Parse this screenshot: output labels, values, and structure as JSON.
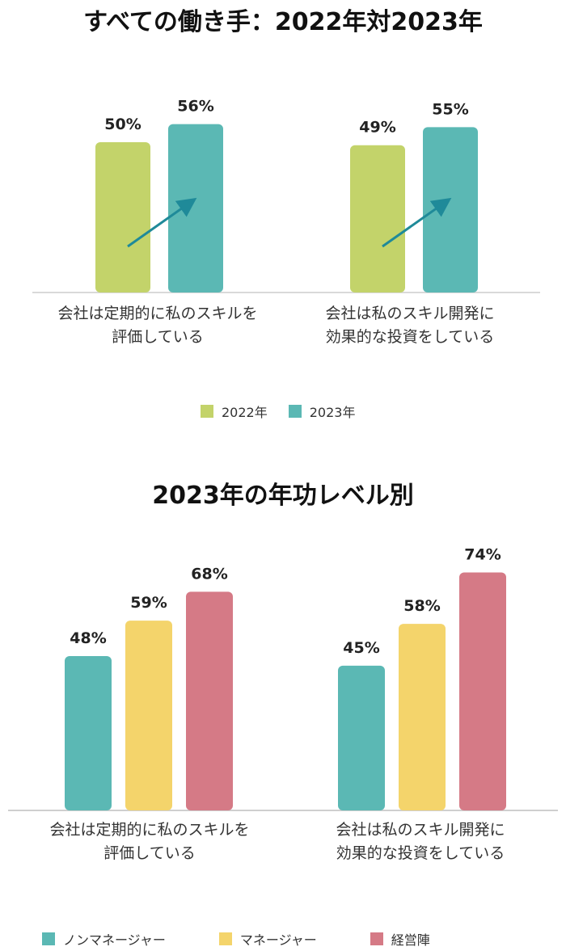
{
  "chart_data": [
    {
      "type": "bar",
      "title": "すべての働き手：2022年対2023年",
      "categories": [
        "会社は定期的に私のスキルを\n評価している",
        "会社は私のスキル開発に\n効果的な投資をしている"
      ],
      "series": [
        {
          "name": "2022年",
          "values": [
            50,
            49
          ],
          "labels": [
            "50%",
            "49%"
          ]
        },
        {
          "name": "2023年",
          "values": [
            56,
            55
          ],
          "labels": [
            "56%",
            "55%"
          ]
        }
      ],
      "colors": [
        "#c3d36a",
        "#5bb8b4"
      ],
      "arrow_color": "#1f8a99",
      "ylim": [
        0,
        80
      ],
      "legend": "bottom-center"
    },
    {
      "type": "bar",
      "title": "2023年の年功レベル別",
      "categories": [
        "会社は定期的に私のスキルを\n評価している",
        "会社は私のスキル開発に\n効果的な投資をしている"
      ],
      "series": [
        {
          "name": "ノンマネージャー",
          "values": [
            48,
            45
          ],
          "labels": [
            "48%",
            "45%"
          ]
        },
        {
          "name": "マネージャー",
          "values": [
            59,
            58
          ],
          "labels": [
            "59%",
            "58%"
          ]
        },
        {
          "name": "経営陣",
          "values": [
            68,
            74
          ],
          "labels": [
            "68%",
            "74%"
          ]
        }
      ],
      "colors": [
        "#5bb8b4",
        "#f4d46b",
        "#d57a86"
      ],
      "ylim": [
        0,
        80
      ],
      "legend": "bottom"
    }
  ]
}
